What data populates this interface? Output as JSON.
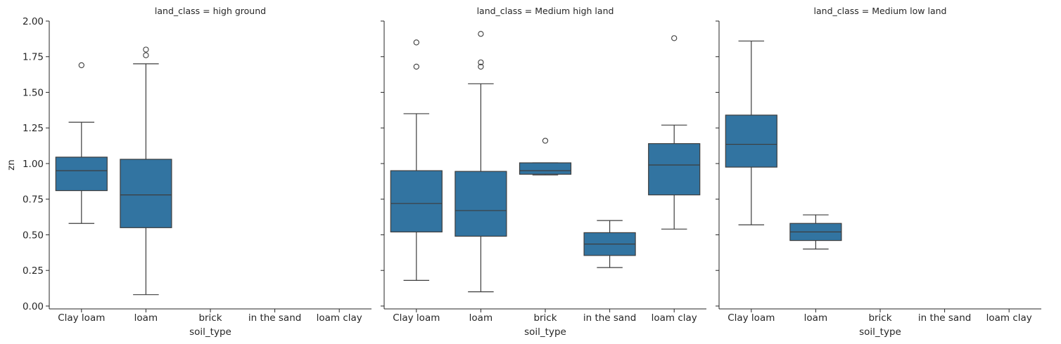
{
  "chart_data": {
    "type": "box",
    "facet_variable": "land_class",
    "xlabel": "soil_type",
    "ylabel": "zn",
    "ylim": [
      -0.02,
      2.0
    ],
    "yticks": [
      "0.00",
      "0.25",
      "0.50",
      "0.75",
      "1.00",
      "1.25",
      "1.50",
      "1.75",
      "2.00"
    ],
    "categories": [
      "Clay loam",
      "loam",
      "brick",
      "in the sand",
      "loam clay"
    ],
    "box_color": "#3274a1",
    "line_color": "#3d3d3d",
    "panels": [
      {
        "title": "land_class = high ground",
        "boxes": [
          {
            "category": "Clay loam",
            "whisker_low": 0.58,
            "q1": 0.81,
            "median": 0.95,
            "q3": 1.045,
            "whisker_high": 1.29,
            "outliers": [
              1.69
            ]
          },
          {
            "category": "loam",
            "whisker_low": 0.08,
            "q1": 0.55,
            "median": 0.78,
            "q3": 1.03,
            "whisker_high": 1.7,
            "outliers": [
              1.76,
              1.8
            ]
          },
          null,
          null,
          null
        ]
      },
      {
        "title": "land_class = Medium high land",
        "boxes": [
          {
            "category": "Clay loam",
            "whisker_low": 0.18,
            "q1": 0.52,
            "median": 0.72,
            "q3": 0.95,
            "whisker_high": 1.35,
            "outliers": [
              1.68,
              1.85
            ]
          },
          {
            "category": "loam",
            "whisker_low": 0.1,
            "q1": 0.49,
            "median": 0.67,
            "q3": 0.945,
            "whisker_high": 1.56,
            "outliers": [
              1.68,
              1.71,
              1.91
            ]
          },
          {
            "category": "brick",
            "whisker_low": 0.92,
            "q1": 0.925,
            "median": 0.95,
            "q3": 1.005,
            "whisker_high": 1.005,
            "outliers": [
              1.16
            ]
          },
          {
            "category": "in the sand",
            "whisker_low": 0.27,
            "q1": 0.355,
            "median": 0.435,
            "q3": 0.515,
            "whisker_high": 0.6,
            "outliers": []
          },
          {
            "category": "loam clay",
            "whisker_low": 0.54,
            "q1": 0.78,
            "median": 0.99,
            "q3": 1.14,
            "whisker_high": 1.27,
            "outliers": [
              1.88
            ]
          }
        ]
      },
      {
        "title": "land_class = Medium low land",
        "boxes": [
          {
            "category": "Clay loam",
            "whisker_low": 0.57,
            "q1": 0.975,
            "median": 1.135,
            "q3": 1.34,
            "whisker_high": 1.86,
            "outliers": []
          },
          {
            "category": "loam",
            "whisker_low": 0.4,
            "q1": 0.46,
            "median": 0.52,
            "q3": 0.58,
            "whisker_high": 0.64,
            "outliers": []
          },
          null,
          null,
          null
        ]
      }
    ]
  }
}
